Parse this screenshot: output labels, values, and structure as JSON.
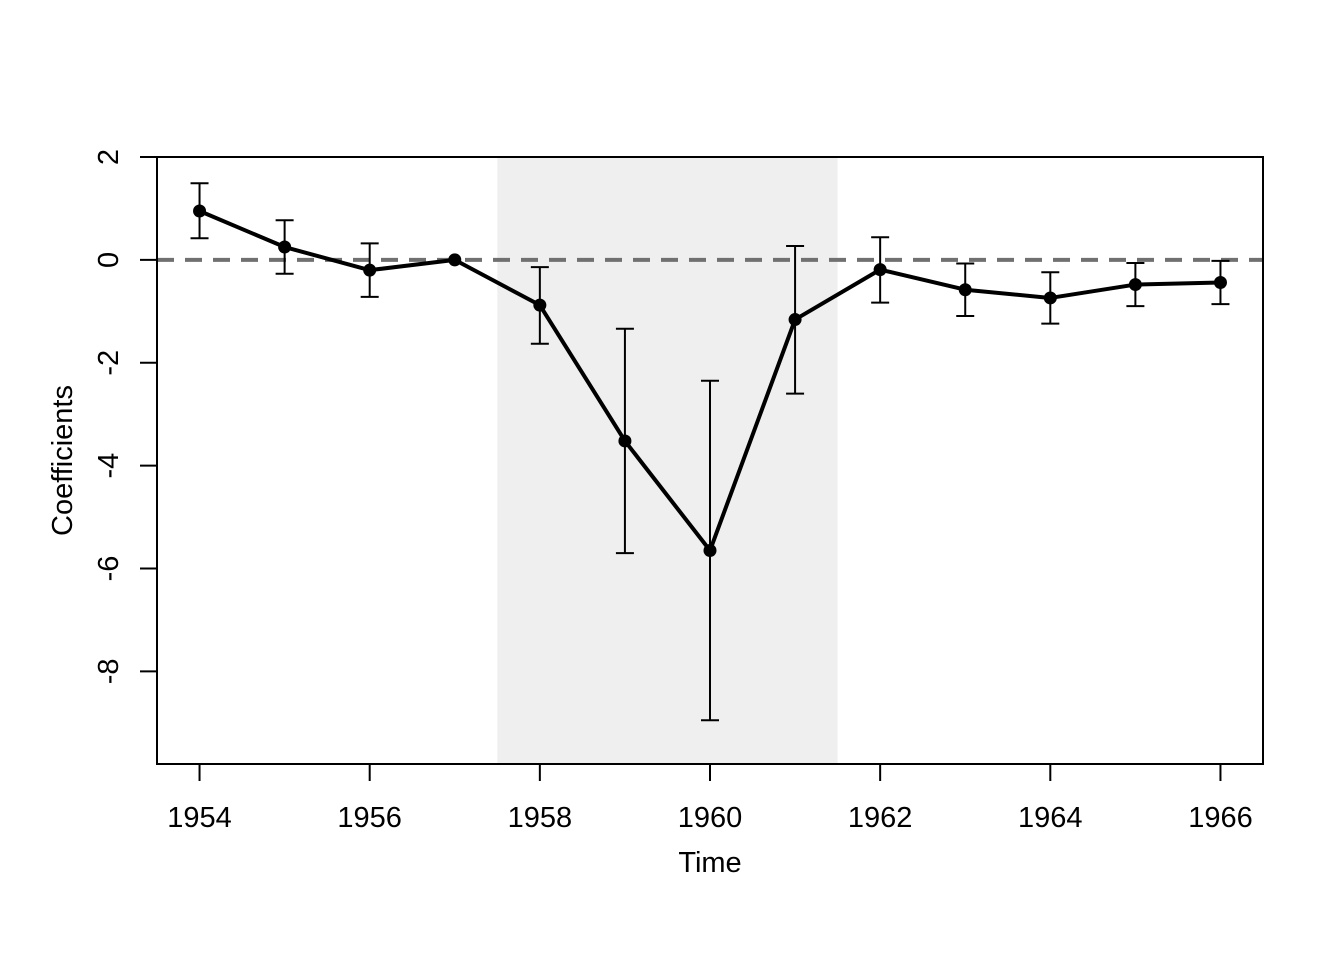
{
  "chart_data": {
    "type": "line",
    "title": "",
    "xlabel": "Time",
    "ylabel": "Coefficients",
    "xlim": [
      1953.5,
      1966.5
    ],
    "ylim": [
      -9.8,
      2.0
    ],
    "x_ticks": [
      1954,
      1956,
      1958,
      1960,
      1962,
      1964,
      1966
    ],
    "x_tick_labels": [
      "1954",
      "1956",
      "1958",
      "1960",
      "1962",
      "1964",
      "1966"
    ],
    "y_ticks": [
      -8,
      -6,
      -4,
      -2,
      0,
      2
    ],
    "y_tick_labels": [
      "-8",
      "-6",
      "-4",
      "-2",
      "0",
      "2"
    ],
    "shaded_region": {
      "x_start": 1957.5,
      "x_end": 1961.5,
      "color": "#efefef"
    },
    "reference_line": {
      "y": 0,
      "style": "dashed",
      "color": "#707070"
    },
    "grid": false,
    "legend": "none",
    "series": [
      {
        "color": "#000000",
        "x": [
          1954,
          1955,
          1956,
          1957,
          1958,
          1959,
          1960,
          1961,
          1962,
          1963,
          1964,
          1965,
          1966
        ],
        "y": [
          0.95,
          0.25,
          -0.2,
          0.0,
          -0.88,
          -3.52,
          -5.65,
          -1.16,
          -0.19,
          -0.58,
          -0.74,
          -0.48,
          -0.44
        ],
        "lower": [
          0.42,
          -0.27,
          -0.72,
          null,
          -1.63,
          -5.7,
          -8.95,
          -2.6,
          -0.83,
          -1.09,
          -1.24,
          -0.9,
          -0.86
        ],
        "upper": [
          1.49,
          0.77,
          0.32,
          null,
          -0.14,
          -1.34,
          -2.35,
          0.27,
          0.44,
          -0.07,
          -0.24,
          -0.06,
          -0.02
        ]
      }
    ]
  }
}
